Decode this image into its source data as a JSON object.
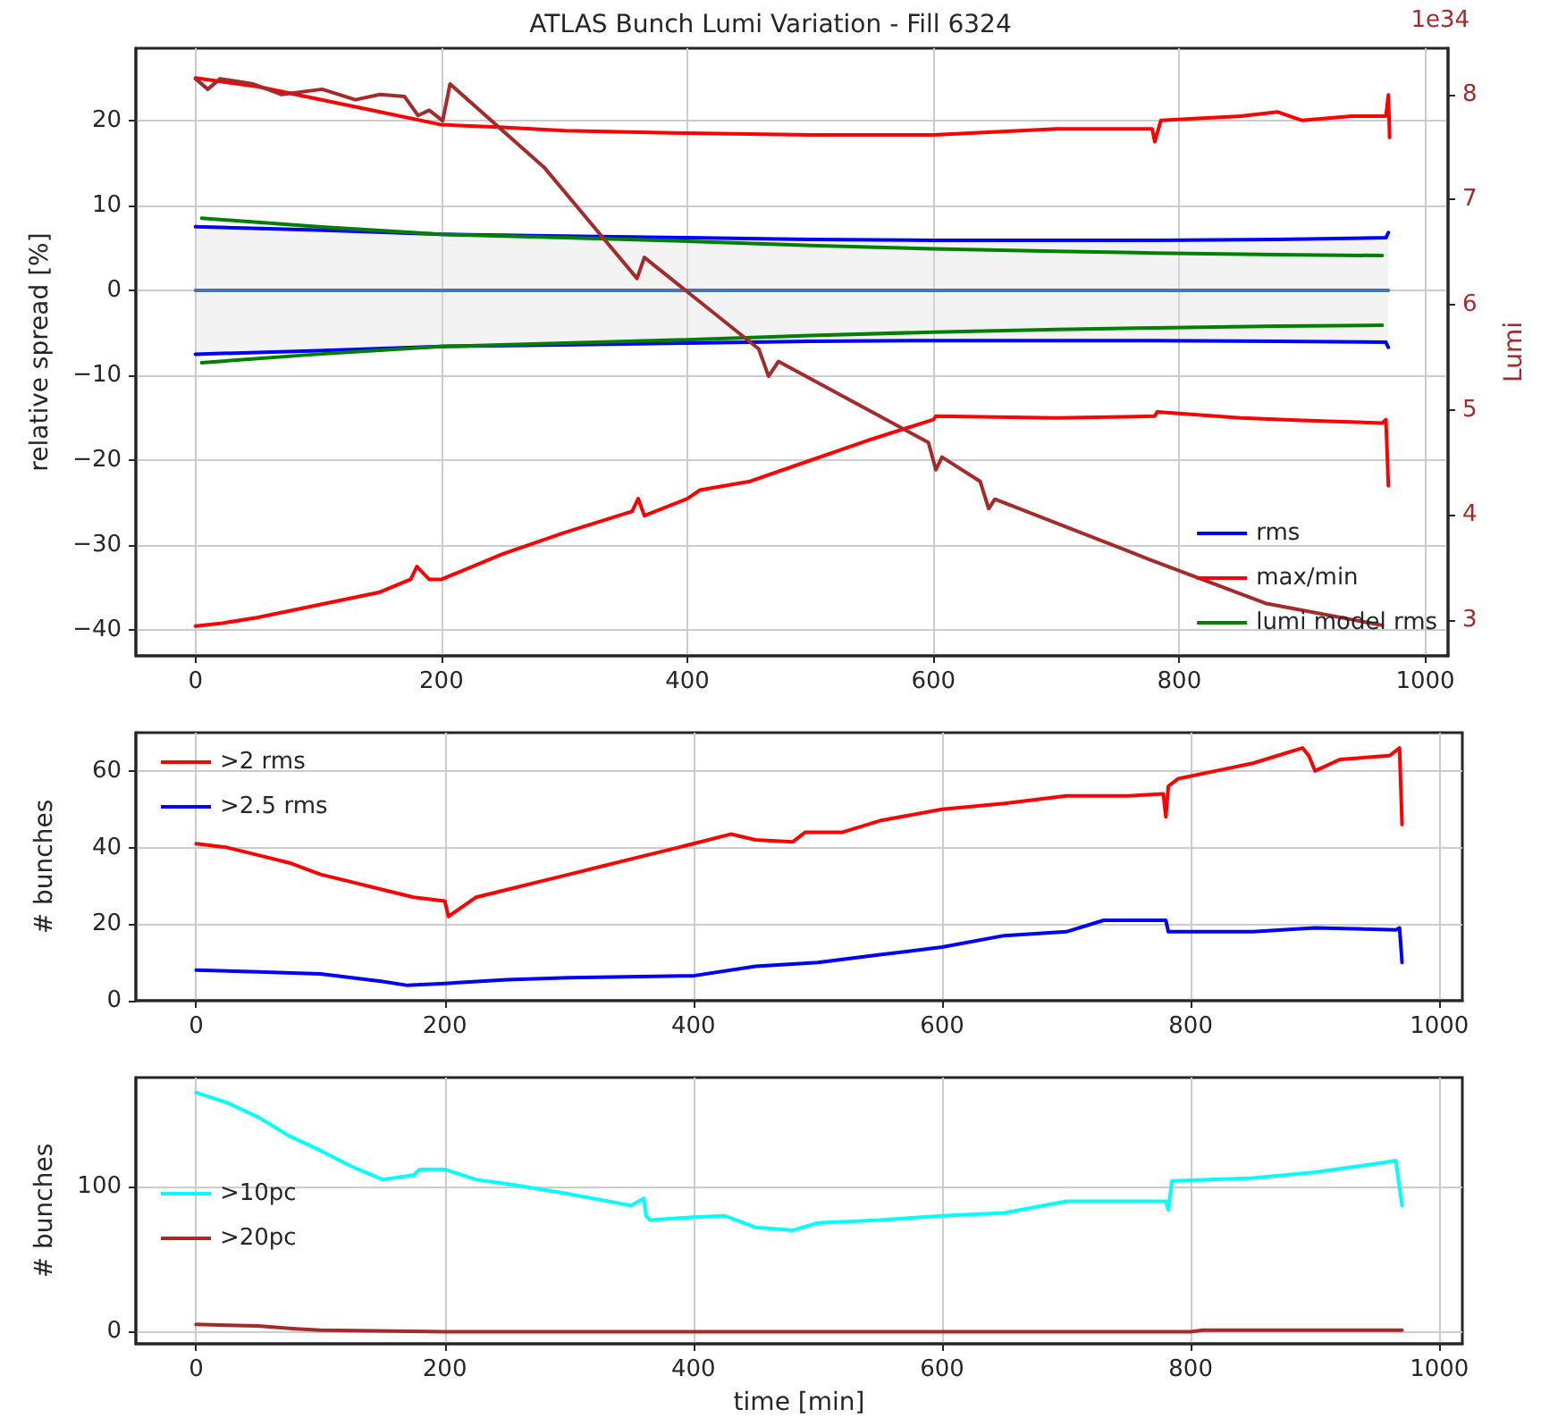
{
  "chart_data": [
    {
      "type": "line",
      "title": "ATLAS Bunch Lumi Variation - Fill 6324",
      "ylabel": "relative spread [%]",
      "y2label": "Lumi",
      "annotations": [
        "1e34"
      ],
      "xlim": [
        -48.5,
        1018.5
      ],
      "xticks": [
        0,
        200,
        400,
        600,
        800,
        1000
      ],
      "ylim": [
        -43,
        28.5
      ],
      "yticks": [
        -40,
        -30,
        -20,
        -10,
        0,
        10,
        20
      ],
      "y2lim": [
        2.66,
        8.44
      ],
      "y2ticks": [
        3,
        4,
        5,
        6,
        7,
        8
      ],
      "grid": true,
      "legend": "bottom right",
      "marker": "none",
      "line_style": "solid",
      "series": [
        {
          "color": "#4c72b0",
          "x": [
            0,
            100,
            200,
            300,
            400,
            500,
            600,
            700,
            780,
            880,
            970
          ],
          "values": [
            0,
            0,
            0,
            0,
            0,
            0,
            0,
            0,
            0,
            0,
            0
          ],
          "upper": [
            7.5,
            7.1,
            6.6,
            6.4,
            6.2,
            6.0,
            5.9,
            5.9,
            5.9,
            6.0,
            6.2
          ],
          "lower": [
            -7.5,
            -7.1,
            -6.6,
            -6.4,
            -6.2,
            -6.0,
            -5.9,
            -5.9,
            -5.9,
            -6.0,
            -6.1
          ]
        },
        {
          "name": "rms",
          "color": "#0000ff",
          "x": [
            0,
            100,
            200,
            300,
            400,
            500,
            600,
            700,
            780,
            880,
            968,
            970
          ],
          "values": [
            7.5,
            7.1,
            6.6,
            6.4,
            6.2,
            6.0,
            5.9,
            5.9,
            5.9,
            6.0,
            6.2,
            6.8
          ]
        },
        {
          "color": "#0000ff",
          "x": [
            0,
            100,
            200,
            300,
            400,
            500,
            600,
            700,
            780,
            880,
            968,
            970
          ],
          "values": [
            -7.5,
            -7.1,
            -6.6,
            -6.4,
            -6.2,
            -6.0,
            -5.9,
            -5.9,
            -5.9,
            -6.0,
            -6.1,
            -6.7
          ]
        },
        {
          "name": "max/min",
          "color": "#ff0000",
          "x": [
            0,
            50,
            100,
            150,
            200,
            250,
            300,
            400,
            500,
            600,
            700,
            778,
            780,
            785,
            850,
            880,
            900,
            940,
            968,
            970,
            971
          ],
          "values": [
            25,
            24,
            22.5,
            21,
            19.5,
            19.2,
            18.8,
            18.5,
            18.3,
            18.3,
            19,
            19,
            17.5,
            20,
            20.5,
            21,
            20,
            20.5,
            20.5,
            23,
            18
          ]
        },
        {
          "color": "#ff0000",
          "x": [
            0,
            20,
            50,
            100,
            150,
            175,
            180,
            190,
            200,
            250,
            300,
            355,
            360,
            365,
            400,
            410,
            450,
            500,
            550,
            600,
            602,
            700,
            780,
            782,
            850,
            900,
            965,
            968,
            970
          ],
          "values": [
            -39.5,
            -39.2,
            -38.5,
            -37,
            -35.5,
            -34,
            -32.5,
            -34,
            -34,
            -31,
            -28.5,
            -26,
            -24.5,
            -26.5,
            -24.5,
            -23.5,
            -22.5,
            -20,
            -17.5,
            -15.2,
            -14.8,
            -15,
            -14.8,
            -14.3,
            -15,
            -15.3,
            -15.6,
            -15.2,
            -23
          ]
        },
        {
          "name": "lumi model rms",
          "color": "#008000",
          "x": [
            5,
            100,
            200,
            300,
            400,
            500,
            600,
            700,
            780,
            880,
            965
          ],
          "values": [
            8.5,
            7.5,
            6.6,
            6.2,
            5.8,
            5.3,
            4.9,
            4.6,
            4.4,
            4.2,
            4.1
          ]
        },
        {
          "color": "#008000",
          "x": [
            5,
            100,
            200,
            300,
            400,
            500,
            600,
            700,
            780,
            880,
            965
          ],
          "values": [
            -8.5,
            -7.5,
            -6.6,
            -6.2,
            -5.8,
            -5.3,
            -4.9,
            -4.6,
            -4.4,
            -4.2,
            -4.1
          ]
        },
        {
          "color": "#a52a2a",
          "axis": "y2",
          "x": [
            0,
            10,
            20,
            47,
            70,
            103,
            130,
            150,
            170,
            181,
            190,
            201,
            207,
            284,
            359,
            365,
            458,
            466,
            474,
            596,
            602,
            607,
            638,
            645,
            650,
            775,
            870,
            965
          ],
          "values": [
            8.15,
            8.05,
            8.15,
            8.1,
            8.0,
            8.05,
            7.95,
            8.0,
            7.98,
            7.8,
            7.85,
            7.75,
            8.1,
            7.3,
            6.25,
            6.45,
            5.58,
            5.32,
            5.46,
            4.69,
            4.43,
            4.55,
            4.32,
            4.06,
            4.15,
            3.58,
            3.16,
            2.95
          ]
        }
      ]
    },
    {
      "type": "line",
      "ylabel": "# bunches",
      "xlim": [
        -48.5,
        1018.5
      ],
      "xticks": [
        0,
        200,
        400,
        600,
        800,
        1000
      ],
      "ylim": [
        0,
        70
      ],
      "yticks": [
        0,
        20,
        40,
        60
      ],
      "grid": true,
      "legend": "top left",
      "marker": "none",
      "line_style": "solid",
      "series": [
        {
          "name": ">2 rms",
          "color": "#ff0000",
          "x": [
            0,
            25,
            50,
            75,
            100,
            125,
            150,
            175,
            200,
            203,
            225,
            250,
            275,
            300,
            325,
            350,
            375,
            400,
            430,
            450,
            480,
            490,
            520,
            550,
            600,
            650,
            700,
            750,
            778,
            780,
            782,
            790,
            820,
            850,
            890,
            895,
            900,
            920,
            960,
            968,
            970
          ],
          "values": [
            41,
            40,
            38,
            36,
            33,
            31,
            29,
            27,
            26,
            22,
            27,
            29,
            31,
            33,
            35,
            37,
            39,
            41,
            43.5,
            42,
            41.5,
            44,
            44,
            47,
            50,
            51.5,
            53.5,
            53.5,
            54,
            48,
            56,
            58,
            60,
            62,
            66,
            64,
            60,
            63,
            64,
            66,
            46
          ]
        },
        {
          "name": ">2.5 rms",
          "color": "#0000ff",
          "x": [
            0,
            50,
            100,
            150,
            170,
            200,
            250,
            300,
            400,
            450,
            500,
            550,
            600,
            650,
            700,
            730,
            780,
            782,
            850,
            900,
            965,
            968,
            970
          ],
          "values": [
            8,
            7.5,
            7,
            5,
            4,
            4.5,
            5.5,
            6,
            6.5,
            9,
            10,
            12,
            14,
            17,
            18,
            21,
            21,
            18,
            18,
            19,
            18.5,
            19,
            10
          ]
        }
      ]
    },
    {
      "type": "line",
      "xlabel": "time [min]",
      "ylabel": "# bunches",
      "xlim": [
        -48.5,
        1018.5
      ],
      "xticks": [
        0,
        200,
        400,
        600,
        800,
        1000
      ],
      "ylim": [
        -8.35,
        175.35
      ],
      "yticks": [
        0,
        100
      ],
      "grid": true,
      "legend": "left",
      "marker": "none",
      "line_style": "solid",
      "series": [
        {
          "name": ">10pc",
          "color": "#00ffff",
          "x": [
            0,
            25,
            50,
            75,
            100,
            125,
            150,
            175,
            180,
            200,
            225,
            250,
            300,
            350,
            360,
            362,
            365,
            400,
            425,
            450,
            480,
            500,
            550,
            600,
            650,
            700,
            750,
            780,
            782,
            785,
            850,
            900,
            950,
            965,
            970
          ],
          "values": [
            165,
            158,
            148,
            135,
            125,
            114,
            105,
            108,
            112,
            112,
            105,
            102,
            95,
            87,
            92,
            80,
            77,
            79,
            80,
            72,
            70,
            75,
            77,
            80,
            82,
            90,
            90,
            90,
            84,
            104,
            106,
            110,
            116,
            118,
            87
          ]
        },
        {
          "name": ">20pc",
          "color": "#a52a2a",
          "x": [
            0,
            50,
            80,
            100,
            200,
            400,
            600,
            800,
            810,
            970
          ],
          "values": [
            5,
            4,
            2,
            1,
            0,
            0,
            0,
            0,
            1,
            1
          ]
        }
      ]
    }
  ]
}
